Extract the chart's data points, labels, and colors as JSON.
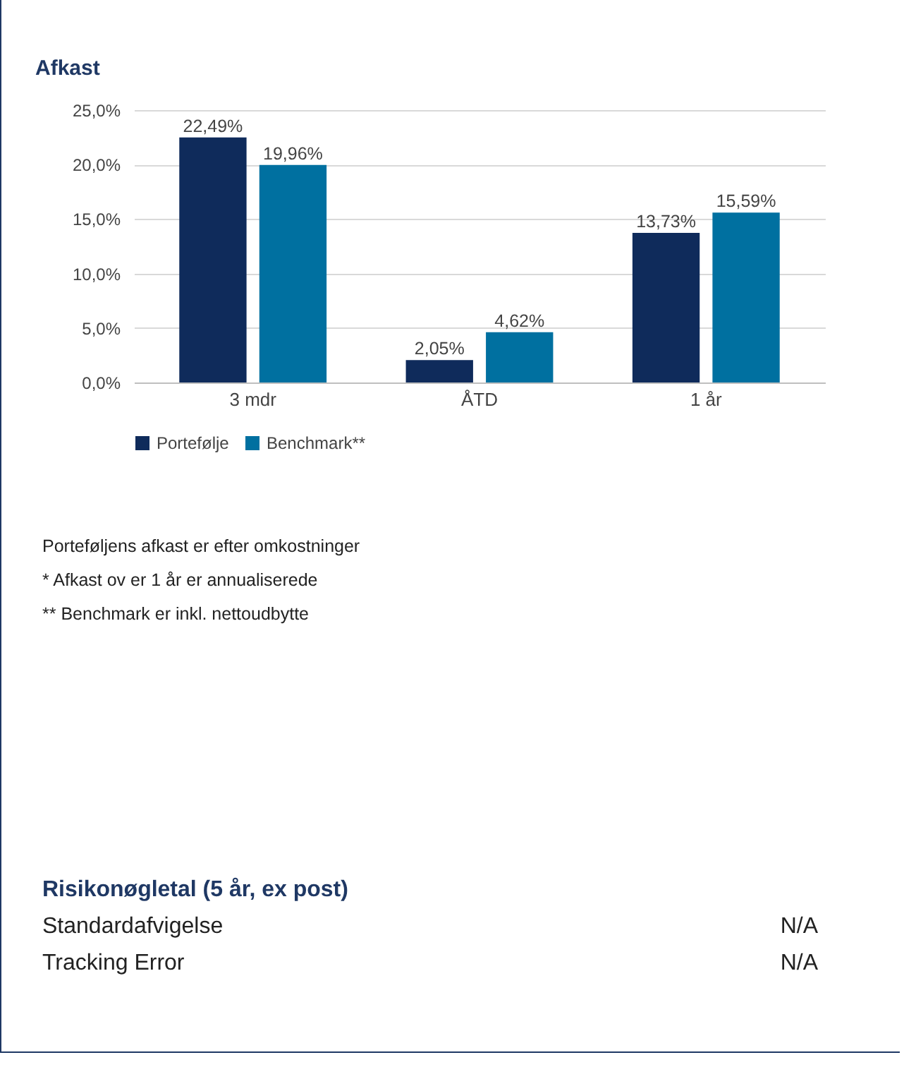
{
  "chart_data": {
    "type": "bar",
    "title": "Afkast",
    "categories": [
      "3 mdr",
      "ÅTD",
      "1 år"
    ],
    "series": [
      {
        "name": "Portefølje",
        "color": "#0f2b5b",
        "values": [
          22.49,
          2.05,
          13.73
        ],
        "value_labels": [
          "22,49%",
          "2,05%",
          "13,73%"
        ]
      },
      {
        "name": "Benchmark**",
        "color": "#0070a0",
        "values": [
          19.96,
          4.62,
          15.59
        ],
        "value_labels": [
          "19,96%",
          "4,62%",
          "15,59%"
        ]
      }
    ],
    "ylim": [
      0,
      25
    ],
    "yticks": [
      {
        "value": 0,
        "label": "0,0%"
      },
      {
        "value": 5,
        "label": "5,0%"
      },
      {
        "value": 10,
        "label": "10,0%"
      },
      {
        "value": 15,
        "label": "15,0%"
      },
      {
        "value": 20,
        "label": "20,0%"
      },
      {
        "value": 25,
        "label": "25,0%"
      }
    ],
    "grid": "y",
    "legend": "bottom",
    "annotations": [
      "Porteføljens afkast er efter omkostninger",
      "* Afkast ov er 1 år er annualiserede",
      "** Benchmark er inkl. nettoudbytte",
      "Risikonøgletal (5 år, ex post)",
      "Standardafvigelse",
      "N/A",
      "Tracking Error",
      "N/A"
    ]
  }
}
